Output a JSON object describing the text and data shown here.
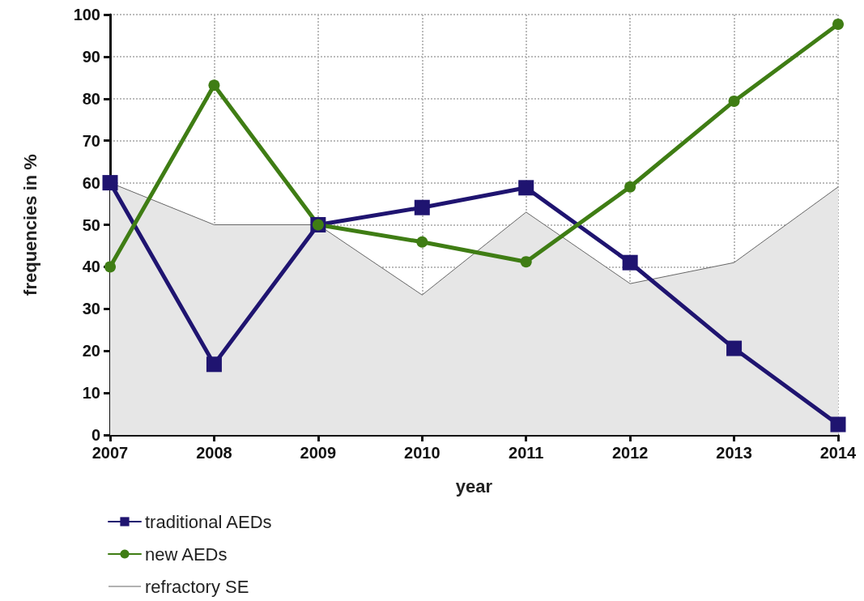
{
  "chart_data": {
    "type": "line",
    "xlabel": "year",
    "ylabel": "frequencies in %",
    "categories": [
      "2007",
      "2008",
      "2009",
      "2010",
      "2011",
      "2012",
      "2013",
      "2014"
    ],
    "series": [
      {
        "name": "traditional AEDs",
        "color": "#1f1470",
        "marker": "square",
        "values": [
          60,
          16.8,
          50,
          54.1,
          58.8,
          41,
          20.6,
          2.5
        ]
      },
      {
        "name": "new AEDs",
        "color": "#3f7d14",
        "marker": "circle",
        "values": [
          40,
          83.2,
          50,
          45.9,
          41.2,
          59,
          79.4,
          97.7
        ]
      },
      {
        "name": "refractory SE",
        "type": "area",
        "color": "#666666",
        "marker": "none",
        "values": [
          60,
          50,
          50,
          33.3,
          53,
          36,
          41,
          59
        ]
      }
    ],
    "ylim": [
      0,
      100
    ],
    "yticks": [
      0,
      10,
      20,
      30,
      40,
      50,
      60,
      70,
      80,
      90,
      100
    ],
    "grid": true,
    "legend": "bottom left"
  }
}
